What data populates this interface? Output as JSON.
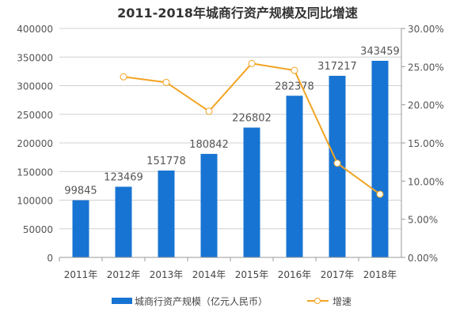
{
  "chart_data": {
    "type": "bar+line",
    "title": "2011-2018年城商行资产规模及同比增速",
    "categories": [
      "2011年",
      "2012年",
      "2013年",
      "2014年",
      "2015年",
      "2016年",
      "2017年",
      "2018年"
    ],
    "series": [
      {
        "name": "城商行资产规模（亿元人民币）",
        "type": "bar",
        "axis": "left",
        "color": "#1874d2",
        "values": [
          99845,
          123469,
          151778,
          180842,
          226802,
          282378,
          317217,
          343459
        ],
        "labels": [
          "99845",
          "123469",
          "151778",
          "180842",
          "226802",
          "282378",
          "317217",
          "343459"
        ]
      },
      {
        "name": "增速",
        "type": "line",
        "axis": "right",
        "color": "#f2a423",
        "values": [
          null,
          23.66,
          22.93,
          19.15,
          25.41,
          24.5,
          12.34,
          8.27
        ]
      }
    ],
    "left_axis": {
      "range": [
        0,
        400000
      ],
      "ticks": [
        "0",
        "50000",
        "100000",
        "150000",
        "200000",
        "250000",
        "300000",
        "350000",
        "400000"
      ]
    },
    "right_axis": {
      "range": [
        0,
        30
      ],
      "ticks": [
        "0.00%",
        "5.00%",
        "10.00%",
        "15.00%",
        "20.00%",
        "25.00%",
        "30.00%"
      ]
    },
    "grid": true,
    "legend": "bottom"
  }
}
